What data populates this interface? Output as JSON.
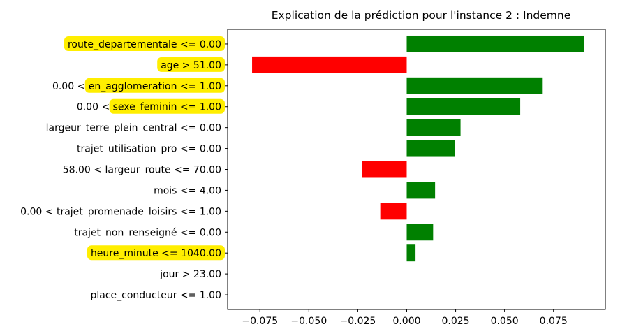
{
  "chart_data": {
    "type": "bar",
    "orientation": "horizontal",
    "title": "Explication de la prédiction pour l'instance 2 : Indemne",
    "xlabel": "",
    "ylabel": "",
    "xlim": [
      -0.0915,
      0.1015
    ],
    "xticks": [
      -0.075,
      -0.05,
      -0.025,
      0.0,
      0.025,
      0.05,
      0.075
    ],
    "xtick_labels": [
      "−0.075",
      "−0.050",
      "−0.025",
      "0.000",
      "0.025",
      "0.050",
      "0.075"
    ],
    "grid": false,
    "legend": "none",
    "positive_color": "#008000",
    "negative_color": "#ff0000",
    "highlight_color": "#ffee00",
    "categories": [
      "route_departementale <= 0.00",
      "age > 51.00",
      "0.00 < en_agglomeration <= 1.00",
      "0.00 < sexe_feminin <= 1.00",
      "largeur_terre_plein_central <= 0.00",
      "trajet_utilisation_pro <= 0.00",
      "58.00 < largeur_route <= 70.00",
      "mois <= 4.00",
      "0.00 < trajet_promenade_loisirs <= 1.00",
      "trajet_non_renseigné <= 0.00",
      "heure_minute <= 1040.00",
      "jour > 23.00",
      "place_conducteur <= 1.00"
    ],
    "values": [
      0.0905,
      -0.079,
      0.0695,
      0.058,
      0.0275,
      0.0245,
      -0.023,
      0.0145,
      -0.0135,
      0.0135,
      0.0045,
      0.0,
      0.0
    ],
    "highlighted": [
      "route_departementale <= 0.00",
      "age > 51.00",
      "en_agglomeration <= 1.00",
      "sexe_feminin <= 1.00",
      "heure_minute <= 1040.00"
    ]
  }
}
